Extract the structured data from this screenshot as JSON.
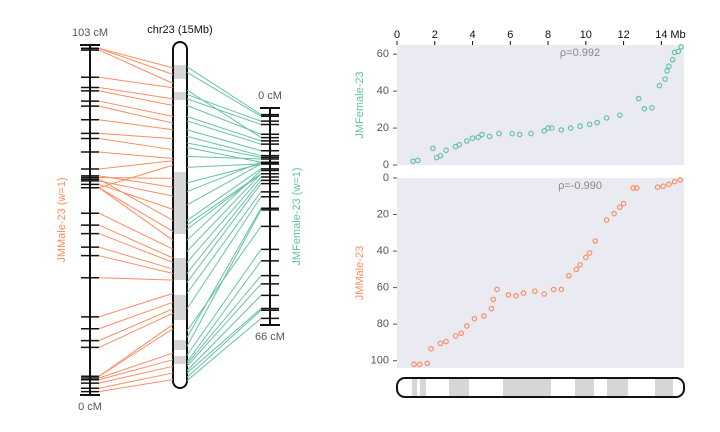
{
  "chromosome": {
    "label": "chr23 (15Mb)"
  },
  "chart_data": [
    {
      "type": "scatter",
      "y_label": "JMFemale-23",
      "annotation": "ρ=0.992",
      "x_label": "Mb",
      "color": "#66c2a5",
      "map": {
        "name": "JMFemale-23 (w=1)",
        "ticks": [
          {
            "value": 0,
            "label": "0 cM"
          },
          {
            "value": 66,
            "label": "66 cM"
          }
        ],
        "direction": "down"
      },
      "xlim": [
        0,
        15.2
      ],
      "xticks": [
        0,
        2,
        4,
        6,
        8,
        10,
        12,
        14
      ],
      "ylim": [
        0,
        65
      ],
      "yticks": [
        0,
        20,
        40,
        60
      ],
      "x": [
        0.85,
        1.1,
        1.9,
        2.1,
        2.3,
        2.6,
        3.1,
        3.3,
        3.7,
        4.0,
        4.3,
        4.5,
        4.9,
        5.4,
        6.1,
        6.5,
        7.1,
        7.8,
        8.0,
        8.2,
        8.7,
        9.2,
        9.7,
        10.2,
        10.6,
        11.1,
        11.8,
        12.8,
        13.1,
        13.5,
        13.9,
        14.2,
        14.3,
        14.4,
        14.6,
        14.7,
        14.9,
        15.05
      ],
      "y": [
        2,
        2.5,
        9,
        4,
        5,
        8,
        10,
        11,
        13,
        14.5,
        15,
        16.5,
        15.5,
        17,
        17,
        16.5,
        17,
        18.5,
        20,
        20,
        19,
        20,
        21,
        22,
        23,
        25.5,
        27,
        36,
        30.5,
        31,
        43,
        46.5,
        51,
        53.5,
        57,
        61,
        61.5,
        64
      ]
    },
    {
      "type": "scatter",
      "y_label": "JMMale-23",
      "annotation": "ρ=-0.990",
      "color": "#fc8d62",
      "map": {
        "name": "JMMale-23 (w=1)",
        "ticks": [
          {
            "value": 0,
            "label": "0 cM"
          },
          {
            "value": 103,
            "label": "103 cM"
          }
        ],
        "direction": "up"
      },
      "xlim": [
        0,
        15.2
      ],
      "ylim": [
        104,
        0
      ],
      "yticks": [
        0,
        20,
        40,
        60,
        80,
        100
      ],
      "x": [
        0.9,
        1.2,
        1.6,
        1.8,
        2.3,
        2.6,
        3.1,
        3.4,
        3.7,
        4.1,
        4.6,
        5.0,
        5.1,
        5.3,
        5.9,
        6.3,
        6.7,
        7.3,
        7.8,
        8.3,
        8.7,
        9.1,
        9.5,
        9.7,
        10.0,
        10.2,
        10.5,
        11.1,
        11.5,
        11.8,
        12.0,
        12.5,
        12.7,
        13.8,
        14.1,
        14.4,
        14.7,
        15.0
      ],
      "y": [
        102,
        102,
        101.5,
        93.5,
        90.5,
        89.5,
        86.5,
        85,
        81,
        77,
        75.5,
        71.5,
        66.5,
        61,
        64,
        64.5,
        63,
        62,
        63.5,
        61,
        61,
        53.5,
        50,
        47.5,
        43.5,
        41,
        34.5,
        23,
        19.5,
        16,
        14,
        5.5,
        5.5,
        5,
        4.5,
        3.5,
        2,
        1
      ]
    }
  ]
}
